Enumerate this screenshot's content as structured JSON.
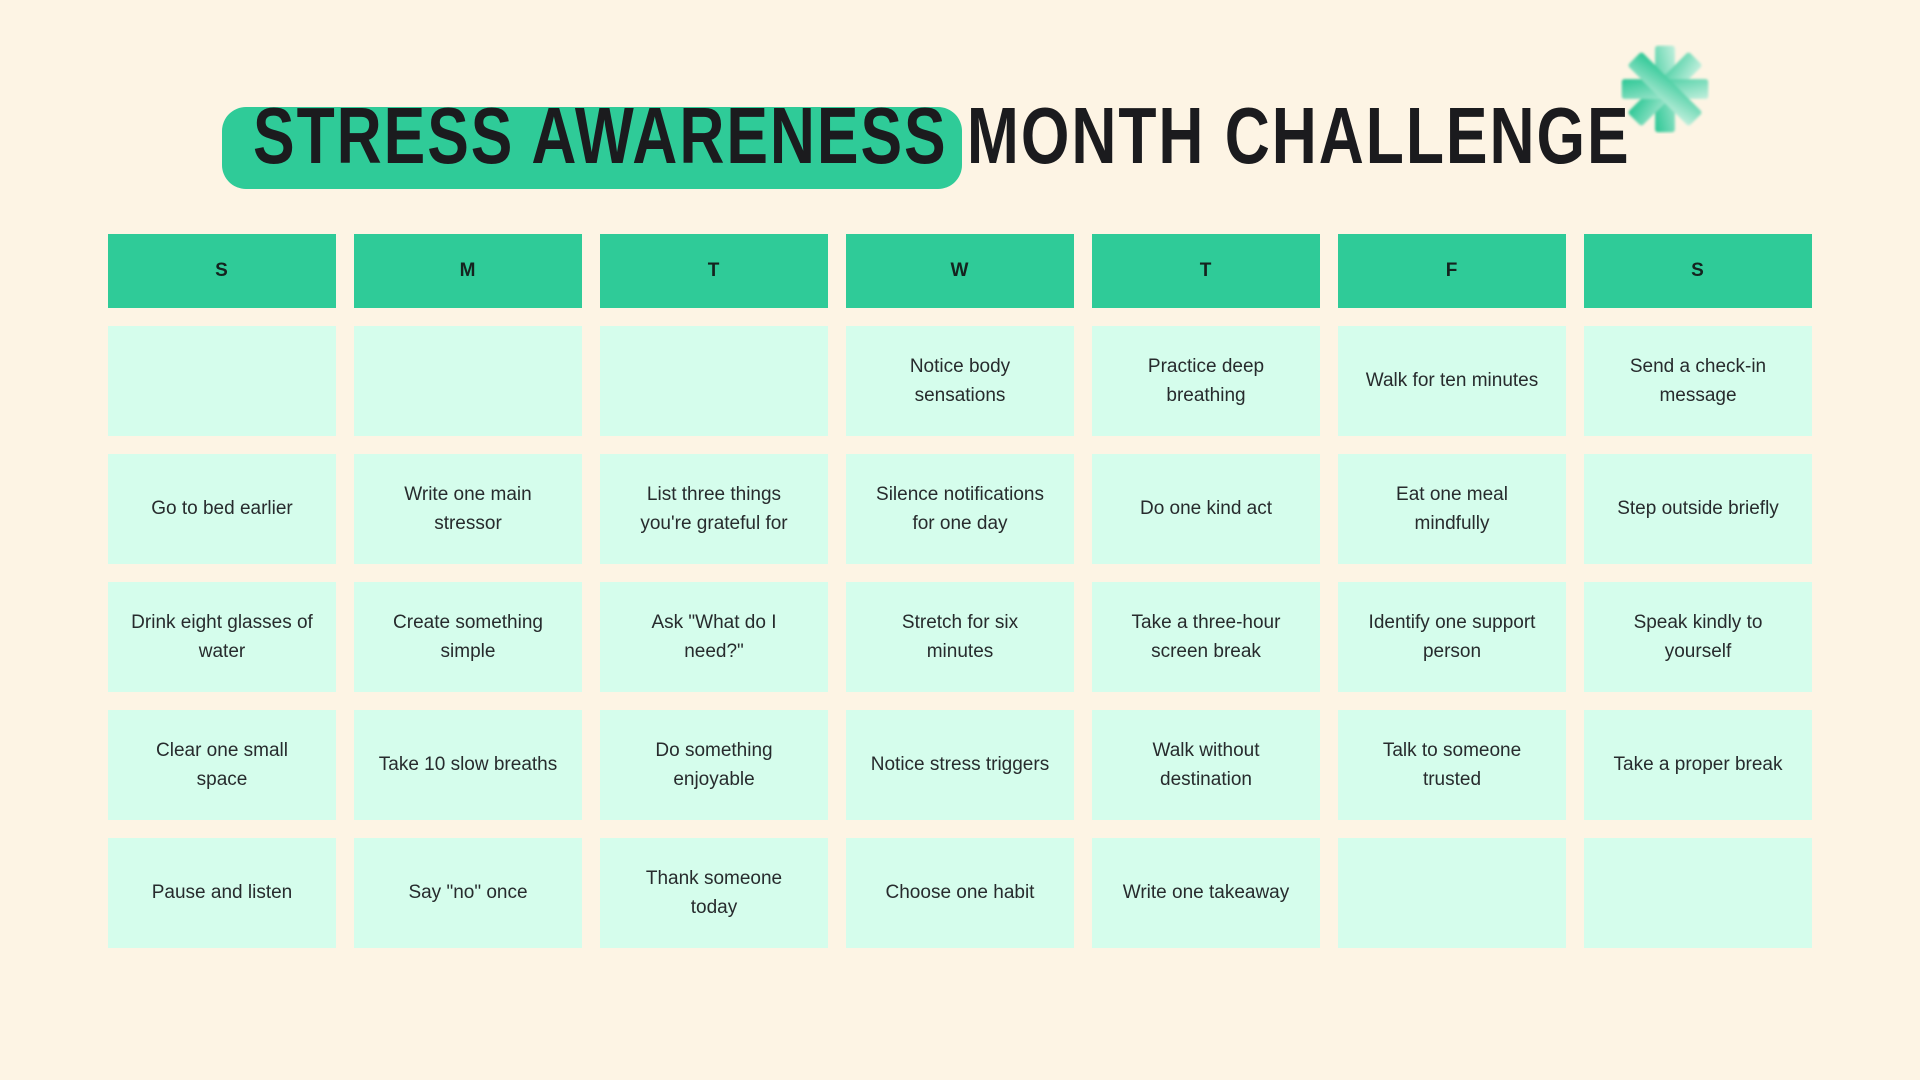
{
  "title": {
    "highlight_text": "STRESS AWARENESS",
    "rest_text": " MONTH CHALLENGE"
  },
  "decoration": {
    "flower_icon": "starburst-flower",
    "flower_gradient": [
      "#2bc795",
      "#c2efdd"
    ]
  },
  "colors": {
    "background": "#fdf4e4",
    "accent_green": "#2fcb98",
    "cell_mint": "#d5fdec",
    "title_ink": "#1b1b1e",
    "cell_ink": "#272b2d"
  },
  "calendar": {
    "days": [
      "S",
      "M",
      "T",
      "W",
      "T",
      "F",
      "S"
    ],
    "rows": [
      [
        "",
        "",
        "",
        "Notice body sensations",
        "Practice deep breathing",
        "Walk for ten minutes",
        "Send a check-in message"
      ],
      [
        "Go to bed earlier",
        "Write one main stressor",
        "List three things you're grateful for",
        "Silence notifications for one day",
        "Do one kind act",
        "Eat one meal mindfully",
        "Step outside briefly"
      ],
      [
        "Drink eight glasses of water",
        "Create something simple",
        "Ask \"What do I need?\"",
        "Stretch for six minutes",
        "Take a three-hour screen break",
        "Identify one support person",
        "Speak kindly to yourself"
      ],
      [
        "Clear one small space",
        "Take 10 slow breaths",
        "Do something enjoyable",
        "Notice stress triggers",
        "Walk without destination",
        "Talk to someone trusted",
        "Take a proper break"
      ],
      [
        "Pause and listen",
        "Say \"no\" once",
        "Thank someone today",
        "Choose one habit",
        "Write one takeaway",
        "",
        ""
      ]
    ]
  }
}
